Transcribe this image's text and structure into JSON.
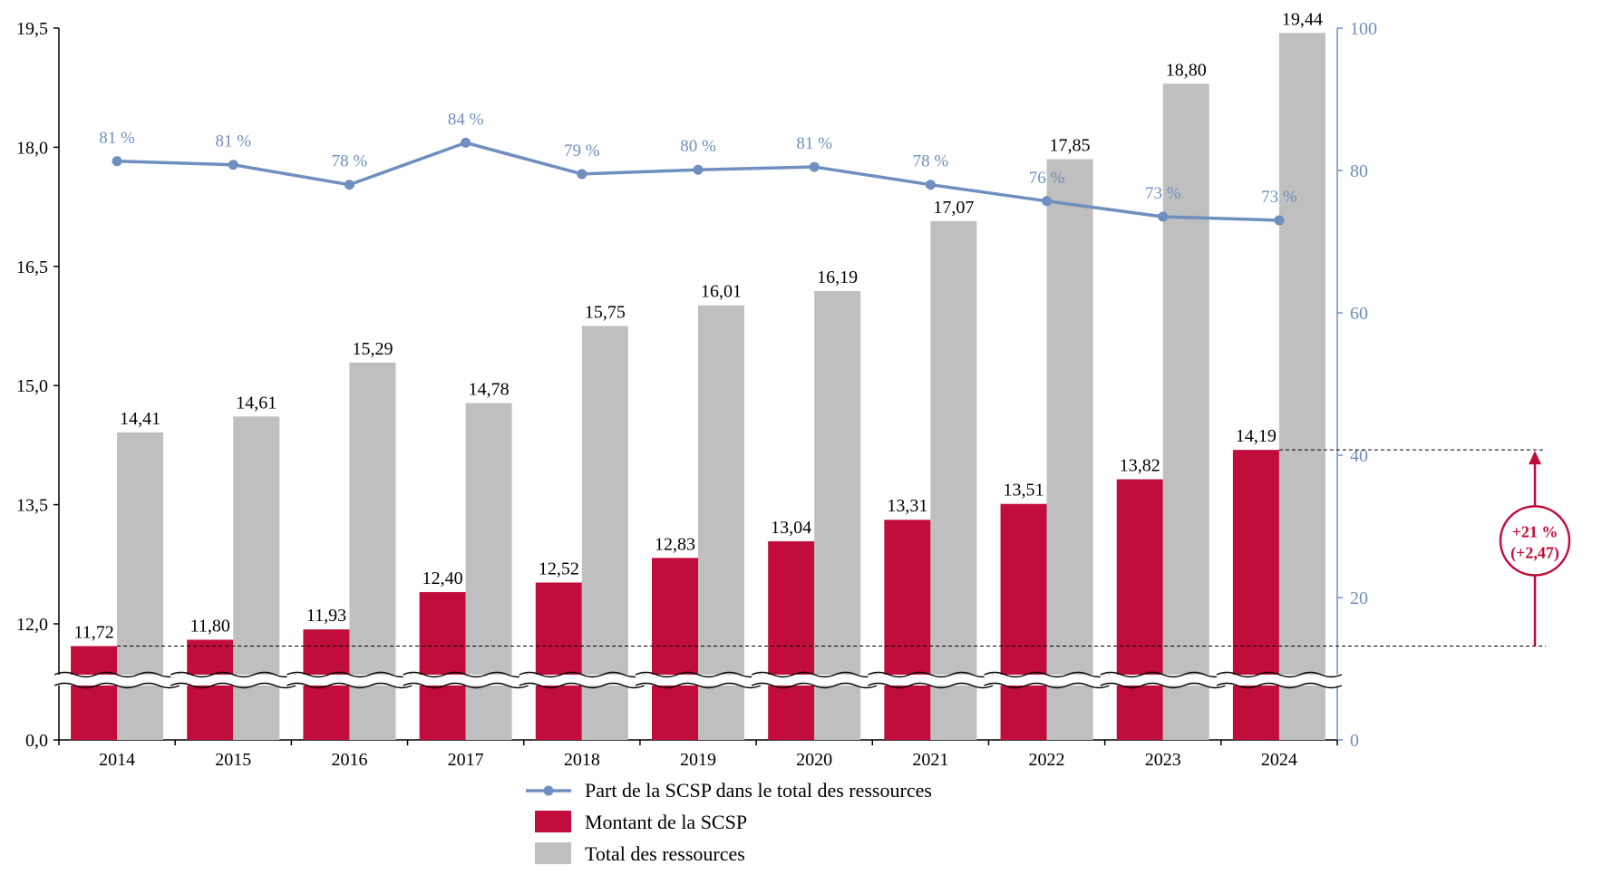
{
  "chart_data": {
    "type": "bar",
    "categories": [
      "2014",
      "2015",
      "2016",
      "2017",
      "2018",
      "2019",
      "2020",
      "2021",
      "2022",
      "2023",
      "2024"
    ],
    "series": [
      {
        "name": "Montant de la SCSP",
        "type": "bar",
        "color": "#C00D3C",
        "values": [
          11.72,
          11.8,
          11.93,
          12.4,
          12.52,
          12.83,
          13.04,
          13.31,
          13.51,
          13.82,
          14.19
        ],
        "labels": [
          "11,72",
          "11,80",
          "11,93",
          "12,40",
          "12,52",
          "12,83",
          "13,04",
          "13,31",
          "13,51",
          "13,82",
          "14,19"
        ]
      },
      {
        "name": "Total des ressources",
        "type": "bar",
        "color": "#BFBFBF",
        "values": [
          14.41,
          14.61,
          15.29,
          14.78,
          15.75,
          16.01,
          16.19,
          17.07,
          17.85,
          18.8,
          19.44
        ],
        "labels": [
          "14,41",
          "14,61",
          "15,29",
          "14,78",
          "15,75",
          "16,01",
          "16,19",
          "17,07",
          "17,85",
          "18,80",
          "19,44"
        ]
      },
      {
        "name": "Part de la SCSP dans le total des ressources",
        "type": "line",
        "axis": "right",
        "color": "#6F8FBF",
        "values": [
          81.3,
          80.8,
          78.0,
          83.9,
          79.5,
          80.1,
          80.5,
          78.0,
          75.7,
          73.5,
          73.0
        ],
        "labels": [
          "81 %",
          "81 %",
          "78 %",
          "84 %",
          "79 %",
          "80 %",
          "81 %",
          "78 %",
          "76 %",
          "73 %",
          "73 %"
        ]
      }
    ],
    "left_axis": {
      "ticks": [
        0,
        12.0,
        13.5,
        15.0,
        16.5,
        18.0,
        19.5
      ],
      "tick_labels": [
        "0,0",
        "12,0",
        "13,5",
        "15,0",
        "16,5",
        "18,0",
        "19,5"
      ],
      "broken": true,
      "range": [
        0,
        19.5
      ]
    },
    "right_axis": {
      "ticks": [
        0,
        20,
        40,
        60,
        80,
        100
      ],
      "tick_labels": [
        "0",
        "20",
        "40",
        "60",
        "80",
        "100"
      ],
      "range": [
        0,
        100
      ],
      "color": "#6F8FBF"
    },
    "annotation": {
      "line1": "+21 %",
      "line2": "(+2,47)",
      "color": "#C00D3C",
      "from_value": 11.72,
      "to_value": 14.19
    },
    "legend_position": "bottom-center",
    "grid": false
  }
}
